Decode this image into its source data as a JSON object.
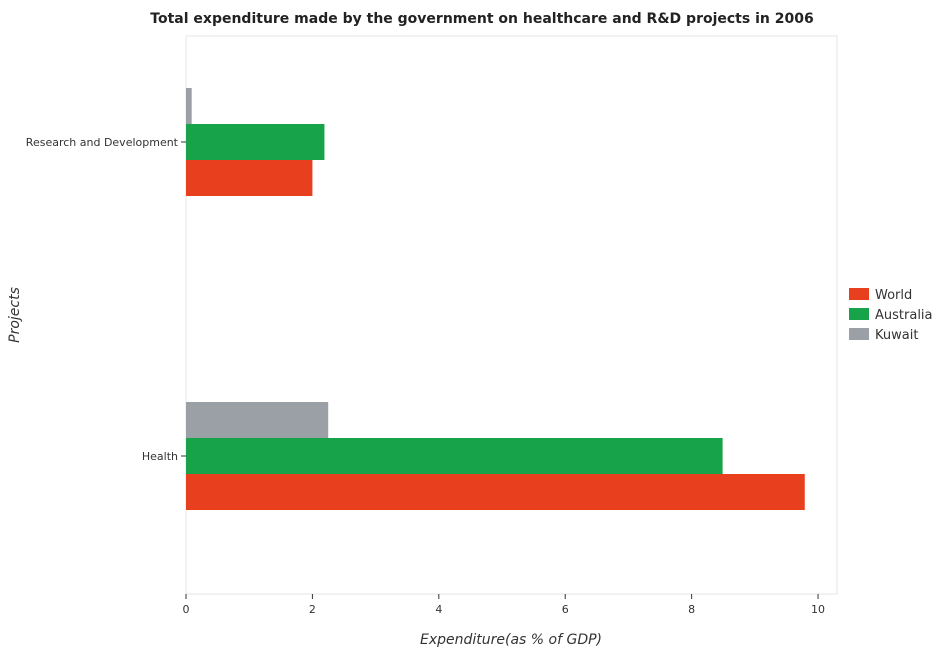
{
  "chart_data": {
    "type": "bar",
    "orientation": "horizontal",
    "title": "Total expenditure made by the government on healthcare and R&D projects in 2006",
    "xlabel": "Expenditure(as % of GDP)",
    "ylabel": "Projects",
    "categories": [
      "Health",
      "Research and Development"
    ],
    "series": [
      {
        "name": "World",
        "color": "#e8401f",
        "values": [
          9.79,
          2.0
        ]
      },
      {
        "name": "Australia",
        "color": "#17a34a",
        "values": [
          8.49,
          2.19
        ]
      },
      {
        "name": "Kuwait",
        "color": "#9aa0a6",
        "values": [
          2.25,
          0.09
        ]
      }
    ],
    "xlim": [
      0,
      10.3
    ],
    "xticks": [
      0,
      2,
      4,
      6,
      8,
      10
    ],
    "xtick_labels": [
      "0",
      "2",
      "4",
      "6",
      "8",
      "10"
    ],
    "grid": false,
    "legend_position": "right"
  }
}
